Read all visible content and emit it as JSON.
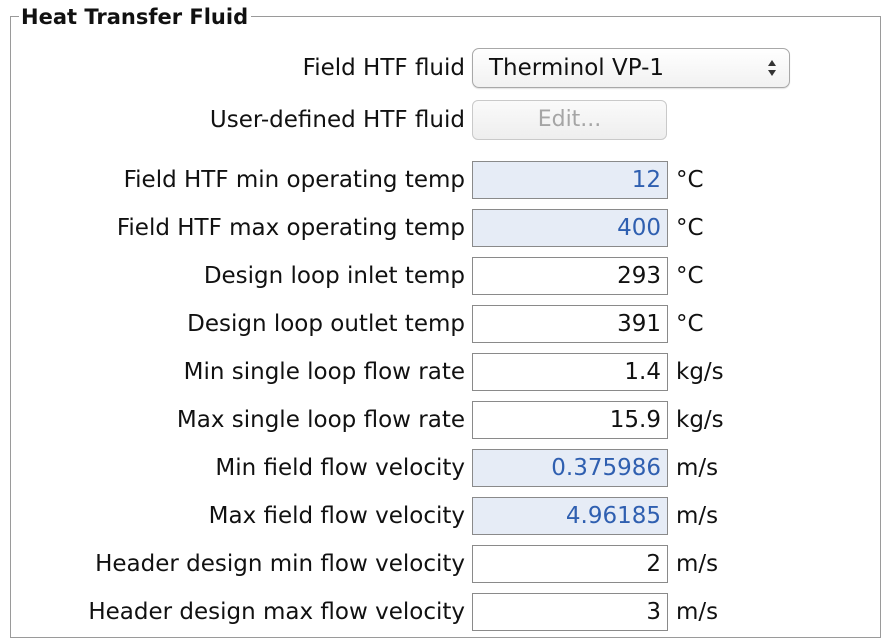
{
  "group": {
    "title": "Heat Transfer Fluid"
  },
  "htf_select": {
    "label": "Field HTF fluid",
    "value": "Therminol VP-1",
    "arrows_icon": "updown-arrows-icon"
  },
  "user_defined": {
    "label": "User-defined HTF fluid",
    "button_label": "Edit..."
  },
  "colors": {
    "calculated_bg": "#e6ecf6",
    "calculated_text": "#2f5fb0",
    "group_border": "#9a9a9a"
  },
  "fields": [
    {
      "label": "Field HTF min operating temp",
      "value": "12",
      "unit": "°C",
      "calculated": true
    },
    {
      "label": "Field HTF max operating temp",
      "value": "400",
      "unit": "°C",
      "calculated": true
    },
    {
      "label": "Design loop inlet temp",
      "value": "293",
      "unit": "°C",
      "calculated": false
    },
    {
      "label": "Design loop outlet temp",
      "value": "391",
      "unit": "°C",
      "calculated": false
    },
    {
      "label": "Min single loop flow rate",
      "value": "1.4",
      "unit": "kg/s",
      "calculated": false
    },
    {
      "label": "Max single loop flow rate",
      "value": "15.9",
      "unit": "kg/s",
      "calculated": false
    },
    {
      "label": "Min field flow velocity",
      "value": "0.375986",
      "unit": "m/s",
      "calculated": true
    },
    {
      "label": "Max field flow velocity",
      "value": "4.96185",
      "unit": "m/s",
      "calculated": true
    },
    {
      "label": "Header design min flow velocity",
      "value": "2",
      "unit": "m/s",
      "calculated": false
    },
    {
      "label": "Header design max flow velocity",
      "value": "3",
      "unit": "m/s",
      "calculated": false
    }
  ]
}
